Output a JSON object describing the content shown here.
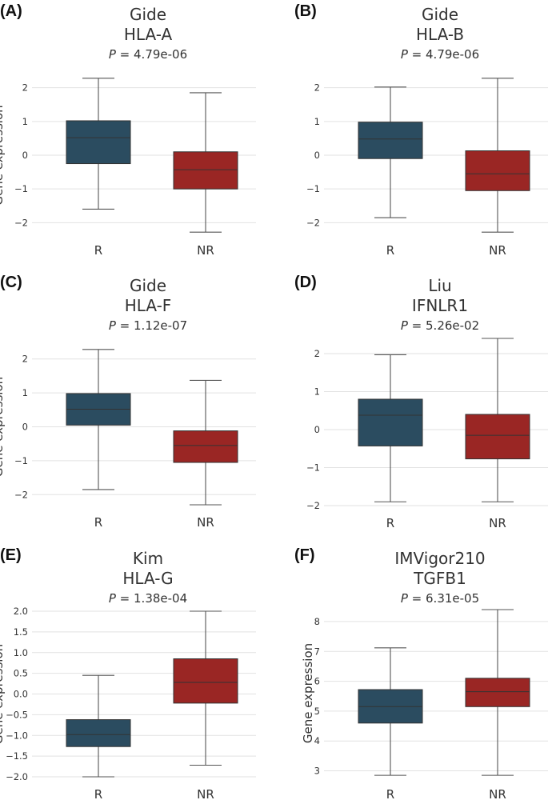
{
  "chart_data": [
    {
      "type": "box",
      "panel": "(A)",
      "dataset": "Gide",
      "gene": "HLA-A",
      "p_prefix": "P",
      "p_suffix": " = 4.79e-06",
      "ylabel": "Gene expression",
      "ylim": [
        -2.3,
        2.3
      ],
      "yticks": [
        -2,
        -1,
        0,
        1,
        2
      ],
      "ytick_labels": [
        "−2",
        "−1",
        "0",
        "1",
        "2"
      ],
      "categories": [
        "R",
        "NR"
      ],
      "boxes": [
        {
          "category": "R",
          "whisker_low": -1.6,
          "q1": -0.25,
          "median": 0.52,
          "q3": 1.02,
          "whisker_high": 2.28,
          "color": "#2b4c60"
        },
        {
          "category": "NR",
          "whisker_low": -2.28,
          "q1": -1.0,
          "median": -0.43,
          "q3": 0.1,
          "whisker_high": 1.85,
          "color": "#9a2624"
        }
      ]
    },
    {
      "type": "box",
      "panel": "(B)",
      "dataset": "Gide",
      "gene": "HLA-B",
      "p_prefix": "P",
      "p_suffix": " = 4.79e-06",
      "ylabel": "",
      "ylim": [
        -2.3,
        2.3
      ],
      "yticks": [
        -2,
        -1,
        0,
        1,
        2
      ],
      "ytick_labels": [
        "−2",
        "−1",
        "0",
        "1",
        "2"
      ],
      "categories": [
        "R",
        "NR"
      ],
      "boxes": [
        {
          "category": "R",
          "whisker_low": -1.85,
          "q1": -0.1,
          "median": 0.48,
          "q3": 0.98,
          "whisker_high": 2.02,
          "color": "#2b4c60"
        },
        {
          "category": "NR",
          "whisker_low": -2.28,
          "q1": -1.05,
          "median": -0.55,
          "q3": 0.13,
          "whisker_high": 2.28,
          "color": "#9a2624"
        }
      ]
    },
    {
      "type": "box",
      "panel": "(C)",
      "dataset": "Gide",
      "gene": "HLA-F",
      "p_prefix": "P",
      "p_suffix": " = 1.12e-07",
      "ylabel": "Gene expression",
      "ylim": [
        -2.3,
        2.3
      ],
      "yticks": [
        -2,
        -1,
        0,
        1,
        2
      ],
      "ytick_labels": [
        "−2",
        "−1",
        "0",
        "1",
        "2"
      ],
      "categories": [
        "R",
        "NR"
      ],
      "boxes": [
        {
          "category": "R",
          "whisker_low": -1.85,
          "q1": 0.05,
          "median": 0.52,
          "q3": 0.98,
          "whisker_high": 2.28,
          "color": "#2b4c60"
        },
        {
          "category": "NR",
          "whisker_low": -2.3,
          "q1": -1.05,
          "median": -0.55,
          "q3": -0.12,
          "whisker_high": 1.37,
          "color": "#9a2624"
        }
      ]
    },
    {
      "type": "box",
      "panel": "(D)",
      "dataset": "Liu",
      "gene": "IFNLR1",
      "p_prefix": "P",
      "p_suffix": " = 5.26e-02",
      "ylabel": "",
      "ylim": [
        -2.0,
        2.4
      ],
      "yticks": [
        -2,
        -1,
        0,
        1,
        2
      ],
      "ytick_labels": [
        "−2",
        "−1",
        "0",
        "1",
        "2"
      ],
      "categories": [
        "R",
        "NR"
      ],
      "boxes": [
        {
          "category": "R",
          "whisker_low": -1.9,
          "q1": -0.43,
          "median": 0.38,
          "q3": 0.8,
          "whisker_high": 1.97,
          "color": "#2b4c60"
        },
        {
          "category": "NR",
          "whisker_low": -1.9,
          "q1": -0.77,
          "median": -0.15,
          "q3": 0.4,
          "whisker_high": 2.4,
          "color": "#9a2624"
        }
      ]
    },
    {
      "type": "box",
      "panel": "(E)",
      "dataset": "Kim",
      "gene": "HLA-G",
      "p_prefix": "P",
      "p_suffix": " = 1.38e-04",
      "ylabel": "Gene expression",
      "ylim": [
        -2.0,
        2.0
      ],
      "yticks": [
        -2.0,
        -1.5,
        -1.0,
        -0.5,
        0.0,
        0.5,
        1.0,
        1.5,
        2.0
      ],
      "ytick_labels": [
        "−2.0",
        "−1.5",
        "−1.0",
        "−0.5",
        "0.0",
        "0.5",
        "1.0",
        "1.5",
        "2.0"
      ],
      "categories": [
        "R",
        "NR"
      ],
      "boxes": [
        {
          "category": "R",
          "whisker_low": -2.0,
          "q1": -1.27,
          "median": -0.98,
          "q3": -0.62,
          "whisker_high": 0.45,
          "color": "#2b4c60"
        },
        {
          "category": "NR",
          "whisker_low": -1.72,
          "q1": -0.22,
          "median": 0.28,
          "q3": 0.85,
          "whisker_high": 2.0,
          "color": "#9a2624"
        }
      ]
    },
    {
      "type": "box",
      "panel": "(F)",
      "dataset": "IMVigor210",
      "gene": "TGFB1",
      "p_prefix": "P",
      "p_suffix": " = 6.31e-05",
      "ylabel": "Gene expression",
      "ylim": [
        2.8,
        8.4
      ],
      "yticks": [
        3,
        4,
        5,
        6,
        7,
        8
      ],
      "ytick_labels": [
        "3",
        "4",
        "5",
        "6",
        "7",
        "8"
      ],
      "categories": [
        "R",
        "NR"
      ],
      "boxes": [
        {
          "category": "R",
          "whisker_low": 2.85,
          "q1": 4.6,
          "median": 5.15,
          "q3": 5.72,
          "whisker_high": 7.12,
          "color": "#2b4c60"
        },
        {
          "category": "NR",
          "whisker_low": 2.85,
          "q1": 5.15,
          "median": 5.65,
          "q3": 6.1,
          "whisker_high": 8.4,
          "color": "#9a2624"
        }
      ]
    }
  ]
}
